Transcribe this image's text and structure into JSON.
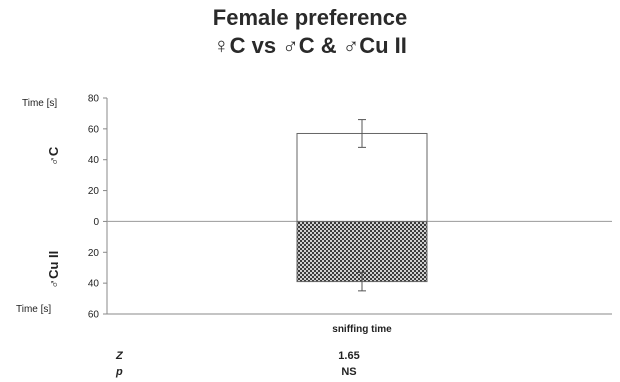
{
  "title": {
    "line1": "Female preference",
    "line2": "♀C vs ♂C & ♂Cu II"
  },
  "chart_data": {
    "type": "bar",
    "categories": [
      "sniffing time"
    ],
    "xlabel": "sniffing time",
    "ylabel_top": "♂C",
    "ylabel_bottom": "♂Cu II",
    "unit_label_top": "Time [s]",
    "unit_label_bottom": "Time [s]",
    "ylim": [
      -60,
      80
    ],
    "yticks": [
      80,
      60,
      40,
      20,
      0,
      -20,
      -40,
      -60
    ],
    "ytick_labels": [
      "80",
      "60",
      "40",
      "20",
      "0",
      "20",
      "40",
      "60"
    ],
    "series": [
      {
        "name": "♂C",
        "values": [
          57
        ],
        "error": [
          9
        ],
        "fill": "#ffffff"
      },
      {
        "name": "♂Cu II",
        "values": [
          -39
        ],
        "error": [
          6
        ],
        "fill": "checkered"
      }
    ],
    "grid": false,
    "legend": "none"
  },
  "stats": [
    {
      "key": "Z",
      "value": "1.65"
    },
    {
      "key": "p",
      "value": "NS"
    }
  ]
}
